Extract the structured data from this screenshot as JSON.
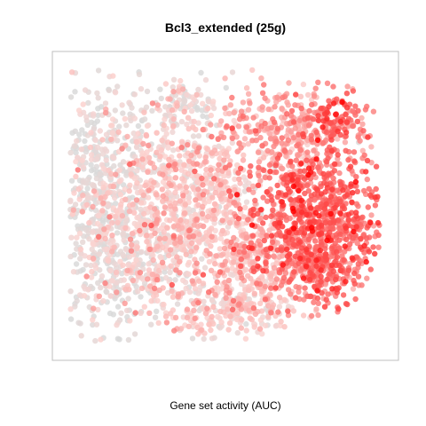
{
  "chart_data": {
    "type": "scatter",
    "title": "Bcl3_extended (25g)",
    "xlabel": "Gene set activity (AUC)",
    "ylabel": "",
    "grid": false,
    "legend": "none",
    "color_low": "#d9d9d9",
    "color_mid": "#fbd3d0",
    "color_high": "#ff0000",
    "clusters": [
      {
        "name": "left-grey",
        "cx": 0.12,
        "cy": 0.52,
        "sx": 0.08,
        "sy": 0.22,
        "n": 700,
        "activity": 0.06
      },
      {
        "name": "lower-left-grey",
        "cx": 0.22,
        "cy": 0.3,
        "sx": 0.09,
        "sy": 0.09,
        "n": 260,
        "activity": 0.08
      },
      {
        "name": "top-grey",
        "cx": 0.36,
        "cy": 0.85,
        "sx": 0.06,
        "sy": 0.05,
        "n": 110,
        "activity": 0.1
      },
      {
        "name": "center-pink",
        "cx": 0.4,
        "cy": 0.5,
        "sx": 0.12,
        "sy": 0.16,
        "n": 900,
        "activity": 0.22
      },
      {
        "name": "bottom-center",
        "cx": 0.52,
        "cy": 0.14,
        "sx": 0.1,
        "sy": 0.05,
        "n": 260,
        "activity": 0.2
      },
      {
        "name": "upper-right",
        "cx": 0.72,
        "cy": 0.76,
        "sx": 0.11,
        "sy": 0.07,
        "n": 380,
        "activity": 0.38
      },
      {
        "name": "top-right-red",
        "cx": 0.84,
        "cy": 0.8,
        "sx": 0.04,
        "sy": 0.04,
        "n": 70,
        "activity": 0.62
      },
      {
        "name": "right-red",
        "cx": 0.78,
        "cy": 0.47,
        "sx": 0.11,
        "sy": 0.11,
        "n": 700,
        "activity": 0.62
      },
      {
        "name": "right-lower",
        "cx": 0.8,
        "cy": 0.28,
        "sx": 0.08,
        "sy": 0.06,
        "n": 260,
        "activity": 0.55
      },
      {
        "name": "mid-right",
        "cx": 0.62,
        "cy": 0.32,
        "sx": 0.07,
        "sy": 0.08,
        "n": 240,
        "activity": 0.3
      }
    ]
  }
}
